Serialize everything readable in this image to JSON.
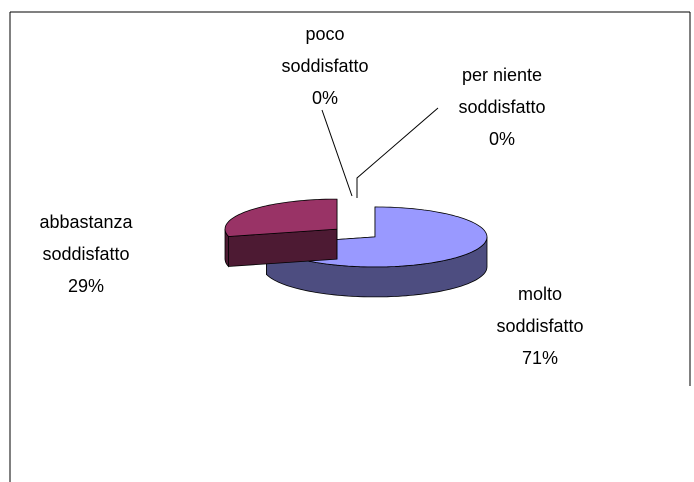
{
  "chart_data": {
    "type": "pie",
    "three_d": true,
    "categories": [
      "molto soddisfatto",
      "abbastanza soddisfatto",
      "poco soddisfatto",
      "per niente soddisfatto"
    ],
    "values": [
      71,
      29,
      0,
      0
    ],
    "value_labels": [
      "71%",
      "29%",
      "0%",
      "0%"
    ],
    "colors": [
      "#9999ff",
      "#993366",
      "#ffffcc",
      "#ccffff"
    ],
    "side_colors": [
      "#4d4d80",
      "#4d1a33",
      "#80806a",
      "#6a8080"
    ]
  }
}
